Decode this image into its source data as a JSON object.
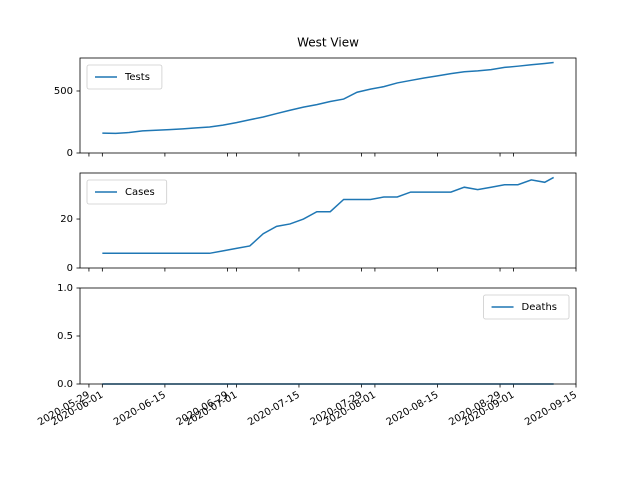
{
  "chart_data": [
    {
      "type": "line",
      "title": "West View",
      "x": [
        "2020-06-01",
        "2020-06-04",
        "2020-06-07",
        "2020-06-10",
        "2020-06-13",
        "2020-06-16",
        "2020-06-19",
        "2020-06-22",
        "2020-06-25",
        "2020-06-28",
        "2020-07-01",
        "2020-07-04",
        "2020-07-07",
        "2020-07-10",
        "2020-07-13",
        "2020-07-16",
        "2020-07-19",
        "2020-07-22",
        "2020-07-25",
        "2020-07-28",
        "2020-07-31",
        "2020-08-03",
        "2020-08-06",
        "2020-08-09",
        "2020-08-12",
        "2020-08-15",
        "2020-08-18",
        "2020-08-21",
        "2020-08-24",
        "2020-08-27",
        "2020-08-30",
        "2020-09-02",
        "2020-09-05",
        "2020-09-08",
        "2020-09-10"
      ],
      "series": [
        {
          "name": "Tests",
          "color": "#1f77b4",
          "values": [
            160,
            158,
            165,
            178,
            183,
            188,
            195,
            203,
            210,
            225,
            245,
            268,
            290,
            318,
            345,
            370,
            390,
            415,
            435,
            490,
            515,
            535,
            565,
            585,
            605,
            622,
            640,
            655,
            662,
            672,
            690,
            700,
            712,
            722,
            730
          ]
        }
      ],
      "xlim": [
        "2020-05-27",
        "2020-09-15"
      ],
      "xticks": [
        "2020-05-29",
        "2020-06-01",
        "2020-06-15",
        "2020-06-29",
        "2020-07-01",
        "2020-07-15",
        "2020-07-29",
        "2020-08-01",
        "2020-08-15",
        "2020-08-29",
        "2020-09-01",
        "2020-09-15"
      ],
      "ylim": [
        0,
        766
      ],
      "yticks": [
        0,
        500
      ],
      "legend": "upper left"
    },
    {
      "type": "line",
      "x": [
        "2020-06-01",
        "2020-06-04",
        "2020-06-07",
        "2020-06-10",
        "2020-06-13",
        "2020-06-16",
        "2020-06-19",
        "2020-06-22",
        "2020-06-25",
        "2020-06-28",
        "2020-07-01",
        "2020-07-04",
        "2020-07-07",
        "2020-07-10",
        "2020-07-13",
        "2020-07-16",
        "2020-07-19",
        "2020-07-22",
        "2020-07-25",
        "2020-07-28",
        "2020-07-31",
        "2020-08-03",
        "2020-08-06",
        "2020-08-09",
        "2020-08-12",
        "2020-08-15",
        "2020-08-18",
        "2020-08-21",
        "2020-08-24",
        "2020-08-27",
        "2020-08-30",
        "2020-09-02",
        "2020-09-05",
        "2020-09-08",
        "2020-09-10"
      ],
      "series": [
        {
          "name": "Cases",
          "color": "#1f77b4",
          "values": [
            6,
            6,
            6,
            6,
            6,
            6,
            6,
            6,
            6,
            7,
            8,
            9,
            14,
            17,
            18,
            20,
            23,
            23,
            28,
            28,
            28,
            29,
            29,
            31,
            31,
            31,
            31,
            33,
            32,
            33,
            34,
            34,
            36,
            35,
            37
          ]
        }
      ],
      "xlim": [
        "2020-05-27",
        "2020-09-15"
      ],
      "xticks": [
        "2020-05-29",
        "2020-06-01",
        "2020-06-15",
        "2020-06-29",
        "2020-07-01",
        "2020-07-15",
        "2020-07-29",
        "2020-08-01",
        "2020-08-15",
        "2020-08-29",
        "2020-09-01",
        "2020-09-15"
      ],
      "ylim": [
        0,
        38.8
      ],
      "yticks": [
        0,
        20
      ],
      "legend": "upper left"
    },
    {
      "type": "line",
      "x": [
        "2020-06-01",
        "2020-06-04",
        "2020-06-07",
        "2020-06-10",
        "2020-06-13",
        "2020-06-16",
        "2020-06-19",
        "2020-06-22",
        "2020-06-25",
        "2020-06-28",
        "2020-07-01",
        "2020-07-04",
        "2020-07-07",
        "2020-07-10",
        "2020-07-13",
        "2020-07-16",
        "2020-07-19",
        "2020-07-22",
        "2020-07-25",
        "2020-07-28",
        "2020-07-31",
        "2020-08-03",
        "2020-08-06",
        "2020-08-09",
        "2020-08-12",
        "2020-08-15",
        "2020-08-18",
        "2020-08-21",
        "2020-08-24",
        "2020-08-27",
        "2020-08-30",
        "2020-09-02",
        "2020-09-05",
        "2020-09-08",
        "2020-09-10"
      ],
      "series": [
        {
          "name": "Deaths",
          "color": "#1f77b4",
          "values": [
            0,
            0,
            0,
            0,
            0,
            0,
            0,
            0,
            0,
            0,
            0,
            0,
            0,
            0,
            0,
            0,
            0,
            0,
            0,
            0,
            0,
            0,
            0,
            0,
            0,
            0,
            0,
            0,
            0,
            0,
            0,
            0,
            0,
            0,
            0
          ]
        }
      ],
      "xlim": [
        "2020-05-27",
        "2020-09-15"
      ],
      "xticks": [
        "2020-05-29",
        "2020-06-01",
        "2020-06-15",
        "2020-06-29",
        "2020-07-01",
        "2020-07-15",
        "2020-07-29",
        "2020-08-01",
        "2020-08-15",
        "2020-08-29",
        "2020-09-01",
        "2020-09-15"
      ],
      "ylim": [
        0,
        1
      ],
      "yticks": [
        {
          "value": 0,
          "label": "0.0"
        },
        {
          "value": 0.5,
          "label": "0.5"
        },
        {
          "value": 1,
          "label": "1.0"
        }
      ],
      "legend": "upper right",
      "xticklabels": true
    }
  ]
}
